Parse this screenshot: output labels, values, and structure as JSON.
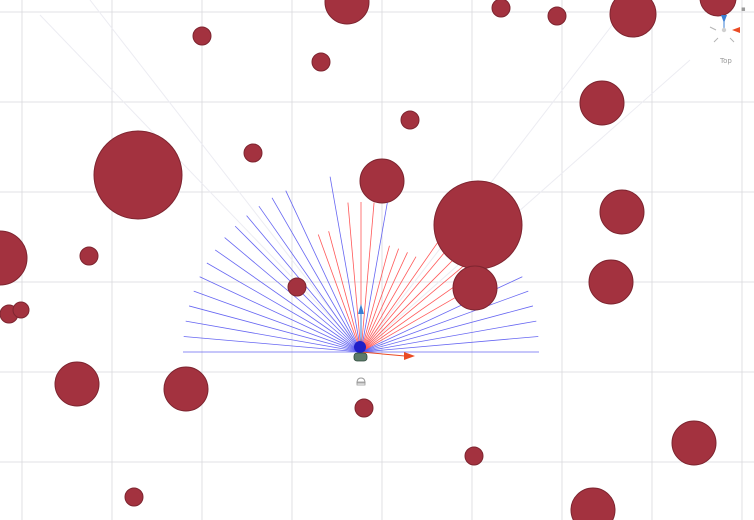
{
  "scene": {
    "background_color": "#ffffff",
    "grid_color": "#d8d8dc",
    "diagonal_guide_color": "#ececf2",
    "obstacle_color": "#a3323f",
    "obstacle_stroke": "#7e2530",
    "ray_clear_color": "#4b4bf0",
    "ray_hit_color": "#ff3b3b",
    "ray_count_left": 18,
    "ray_count_right": 18
  },
  "agent": {
    "label": "",
    "forward_arrow_color": "#3b7fd4",
    "right_arrow_color": "#ea4b24"
  },
  "orientation_gizmo": {
    "label": "Top",
    "y_axis_color": "#3b7fd4",
    "x_axis_color": "#ea4b24",
    "z_axis_color": "#9a9a9a"
  },
  "icons": {
    "agent": "agent-marker-icon",
    "camera": "camera-icon",
    "gizmo": "orientation-gizmo-icon"
  }
}
